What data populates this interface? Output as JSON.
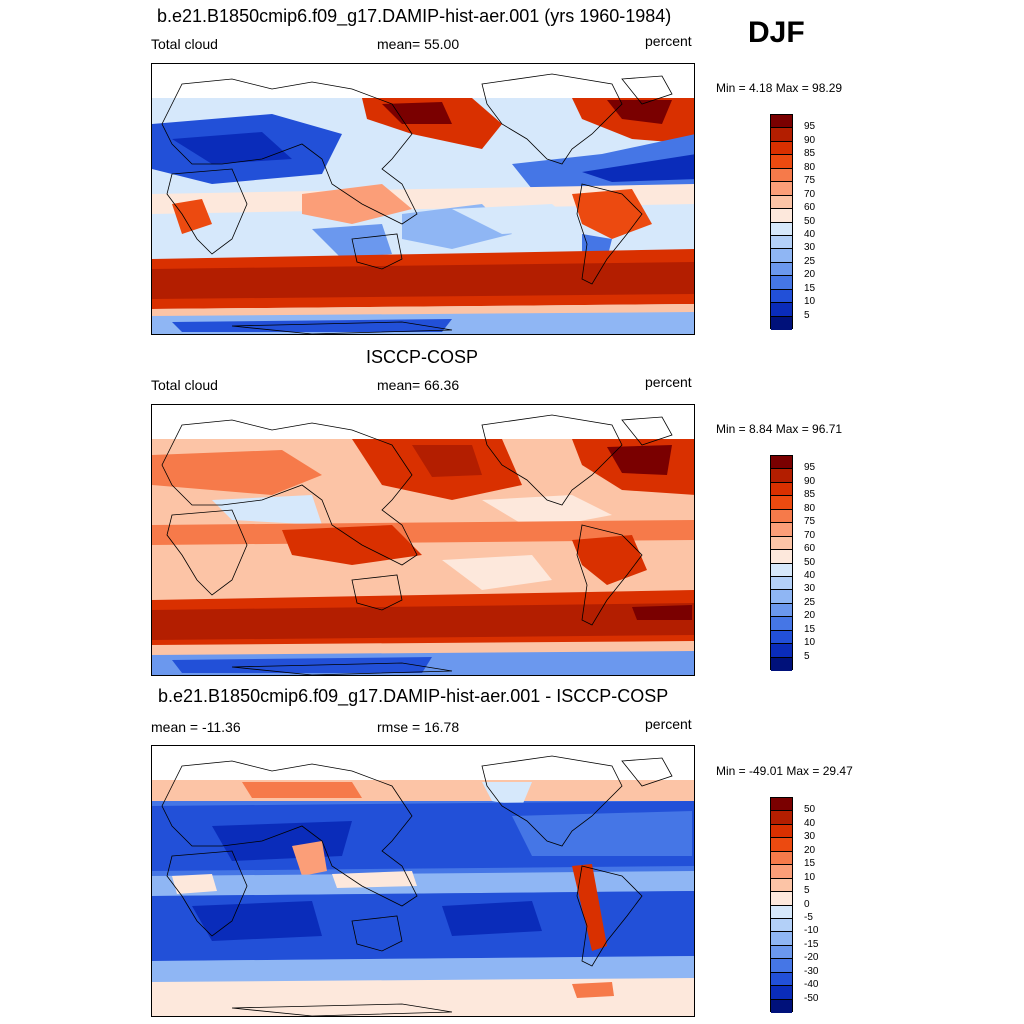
{
  "season": "DJF",
  "units": "percent",
  "panels": [
    {
      "title": "b.e21.B1850cmip6.f09_g17.DAMIP-hist-aer.001 (yrs 1960-1984)",
      "left_label": "Total cloud",
      "center_label": "mean=  55.00",
      "right_label": "percent",
      "minmax": "Min =   4.18 Max =  98.29",
      "colorbar_labels": [
        "95",
        "90",
        "85",
        "80",
        "75",
        "70",
        "60",
        "50",
        "40",
        "30",
        "25",
        "20",
        "15",
        "10",
        "5"
      ],
      "colors": [
        "#7a0000",
        "#b31e00",
        "#d93000",
        "#ec4a10",
        "#f67a4a",
        "#fb9e78",
        "#fcc4a6",
        "#fde8dc",
        "#d6e8fb",
        "#b3d0f8",
        "#8fb6f4",
        "#6b98ee",
        "#4576e6",
        "#2250d8",
        "#0a2cba",
        "#00117a"
      ]
    },
    {
      "title": "ISCCP-COSP",
      "left_label": "Total cloud",
      "center_label": "mean=  66.36",
      "right_label": "percent",
      "minmax": "Min =   8.84 Max =  96.71",
      "colorbar_labels": [
        "95",
        "90",
        "85",
        "80",
        "75",
        "70",
        "60",
        "50",
        "40",
        "30",
        "25",
        "20",
        "15",
        "10",
        "5"
      ],
      "colors": [
        "#7a0000",
        "#b31e00",
        "#d93000",
        "#ec4a10",
        "#f67a4a",
        "#fb9e78",
        "#fcc4a6",
        "#fde8dc",
        "#d6e8fb",
        "#b3d0f8",
        "#8fb6f4",
        "#6b98ee",
        "#4576e6",
        "#2250d8",
        "#0a2cba",
        "#00117a"
      ]
    },
    {
      "title": "b.e21.B1850cmip6.f09_g17.DAMIP-hist-aer.001 - ISCCP-COSP",
      "left_label": "mean = -11.36",
      "center_label": "rmse =  16.78",
      "right_label": "percent",
      "minmax": "Min = -49.01 Max =  29.47",
      "colorbar_labels": [
        "50",
        "40",
        "30",
        "20",
        "15",
        "10",
        "5",
        "0",
        "-5",
        "-10",
        "-15",
        "-20",
        "-30",
        "-40",
        "-50"
      ],
      "colors": [
        "#7a0000",
        "#b31e00",
        "#d93000",
        "#ec4a10",
        "#f67a4a",
        "#fb9e78",
        "#fcc4a6",
        "#fde8dc",
        "#d6e8fb",
        "#b3d0f8",
        "#8fb6f4",
        "#6b98ee",
        "#4576e6",
        "#2250d8",
        "#0a2cba",
        "#00117a"
      ]
    }
  ]
}
